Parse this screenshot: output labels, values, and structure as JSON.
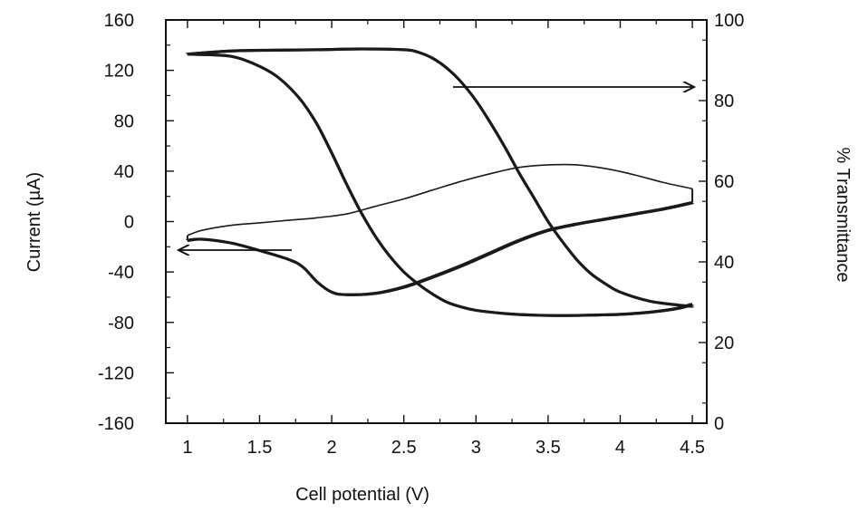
{
  "chart_data": {
    "type": "line",
    "title": "",
    "xlabel": "Cell potential (V)",
    "ylabel_left": "Current (µA)",
    "ylabel_right": "% Transmittance",
    "xlim": [
      0.85,
      4.6
    ],
    "ylim_left": [
      -160,
      160
    ],
    "ylim_right": [
      0,
      100
    ],
    "xticks": [
      1,
      1.5,
      2,
      2.5,
      3,
      3.5,
      4,
      4.5
    ],
    "xtick_labels": [
      "1",
      "1.5",
      "2",
      "2.5",
      "3",
      "3.5",
      "4",
      "4.5"
    ],
    "yticks_left": [
      -160,
      -120,
      -80,
      -40,
      0,
      40,
      80,
      120,
      160
    ],
    "ytick_labels_left": [
      "-160",
      "-120",
      "-80",
      "-40",
      "0",
      "40",
      "80",
      "120",
      "160"
    ],
    "yticks_right": [
      0,
      20,
      40,
      60,
      80,
      100
    ],
    "ytick_labels_right": [
      "0",
      "20",
      "40",
      "60",
      "80",
      "100"
    ],
    "grid": false,
    "colors": {
      "line": "#1a1a1a",
      "axis": "#111111"
    },
    "series": [
      {
        "axis": "left",
        "style": "bold",
        "x": [
          1.0,
          1.1,
          1.3,
          1.5,
          1.7,
          1.8,
          1.9,
          2.0,
          2.1,
          2.3,
          2.5,
          2.7,
          2.9,
          3.1,
          3.3,
          3.5,
          3.7,
          3.9,
          4.1,
          4.3,
          4.5
        ],
        "y": [
          -15,
          -14,
          -17,
          -23,
          -30,
          -36,
          -48,
          -56,
          -58,
          -57,
          -52,
          -44,
          -35,
          -25,
          -15,
          -7,
          -2,
          2,
          6,
          10,
          15
        ]
      },
      {
        "axis": "left",
        "style": "thin",
        "x": [
          1.0,
          1.1,
          1.3,
          1.5,
          1.7,
          1.9,
          2.1,
          2.3,
          2.5,
          2.7,
          2.9,
          3.1,
          3.3,
          3.5,
          3.7,
          3.9,
          4.1,
          4.3,
          4.5
        ],
        "y": [
          -11,
          -7,
          -3,
          -1,
          1,
          3,
          6,
          12,
          18,
          25,
          32,
          38,
          43,
          45,
          45,
          42,
          37,
          31,
          26
        ]
      },
      {
        "axis": "right",
        "style": "bold",
        "x": [
          1.0,
          1.2,
          1.3,
          1.4,
          1.5,
          1.6,
          1.7,
          1.8,
          1.9,
          2.0,
          2.1,
          2.2,
          2.3,
          2.4,
          2.5,
          2.6,
          2.7,
          2.8,
          2.9,
          3.0,
          3.2,
          3.4,
          3.6,
          3.8,
          4.0,
          4.2,
          4.4,
          4.5
        ],
        "y": [
          91.5,
          91.3,
          91.0,
          90.0,
          88.5,
          86.5,
          83.5,
          79.5,
          74,
          67,
          59.5,
          52.5,
          46.5,
          41.5,
          37.5,
          34.5,
          32.0,
          30.0,
          28.8,
          28.0,
          27.2,
          26.8,
          26.7,
          26.8,
          27.0,
          27.5,
          28.5,
          29.5
        ]
      },
      {
        "axis": "right",
        "style": "bold",
        "x": [
          1.0,
          1.3,
          1.6,
          1.9,
          2.2,
          2.5,
          2.6,
          2.7,
          2.8,
          2.9,
          3.0,
          3.1,
          3.2,
          3.3,
          3.4,
          3.5,
          3.6,
          3.7,
          3.8,
          3.9,
          4.0,
          4.2,
          4.4,
          4.5
        ],
        "y": [
          91.5,
          92.3,
          92.5,
          92.6,
          92.8,
          92.6,
          92.0,
          90.5,
          88.0,
          84.5,
          80.0,
          74.5,
          68.5,
          62.0,
          56.0,
          50.0,
          45.0,
          40.5,
          37.0,
          34.5,
          32.5,
          30.3,
          29.3,
          29.0
        ]
      }
    ]
  }
}
